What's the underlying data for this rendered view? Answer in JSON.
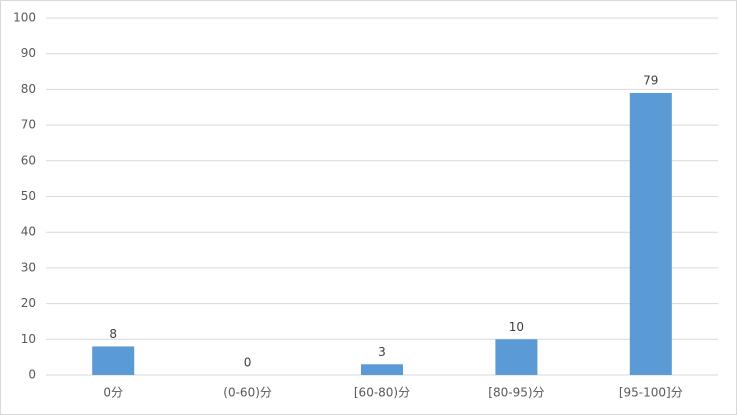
{
  "chart_data": {
    "type": "bar",
    "categories": [
      "0分",
      "(0-60)分",
      "[60-80)分",
      "[80-95)分",
      "[95-100]分"
    ],
    "values": [
      8,
      0,
      3,
      10,
      79
    ],
    "color": "#5b9bd5",
    "ylim": [
      0,
      100
    ],
    "yticks": [
      0,
      10,
      20,
      30,
      40,
      50,
      60,
      70,
      80,
      90,
      100
    ],
    "grid": true,
    "data_labels": true
  }
}
